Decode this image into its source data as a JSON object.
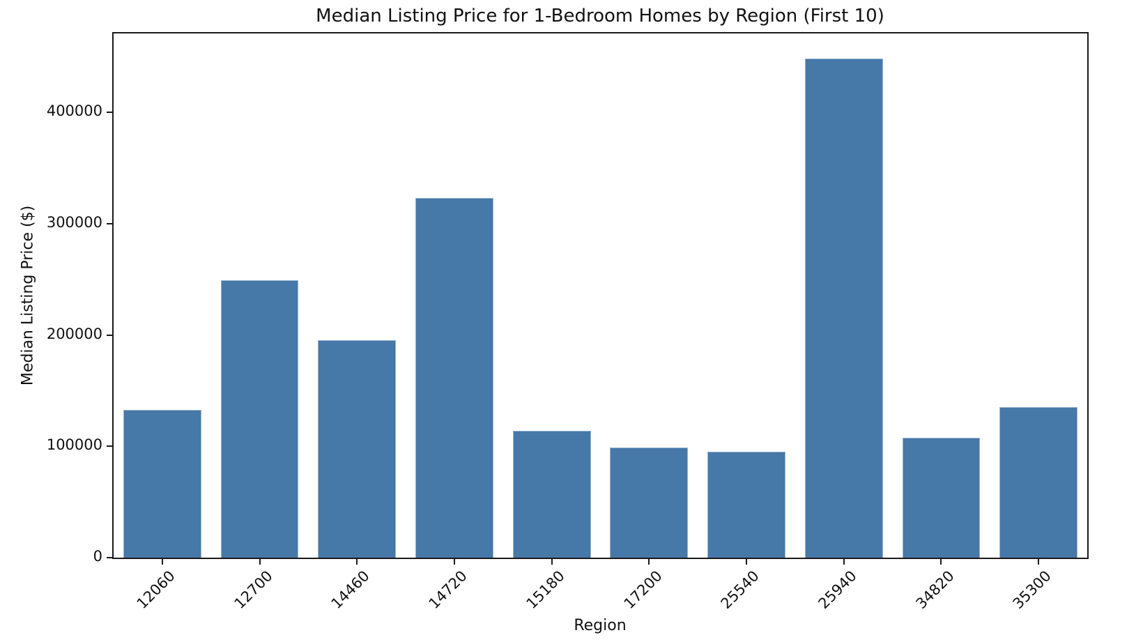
{
  "chart_data": {
    "type": "bar",
    "title": "Median Listing Price for 1-Bedroom Homes by Region (First 10)",
    "xlabel": "Region",
    "ylabel": "Median Listing Price ($)",
    "categories": [
      "12060",
      "12700",
      "14460",
      "14720",
      "15180",
      "17200",
      "25540",
      "25940",
      "34820",
      "35300"
    ],
    "values": [
      132500,
      249500,
      195600,
      323500,
      114000,
      99000,
      95400,
      448400,
      107800,
      135600
    ],
    "yticks": [
      0,
      100000,
      200000,
      300000,
      400000
    ],
    "ylim": [
      0,
      471000
    ],
    "bar_width_fraction": 0.8,
    "grid": false,
    "legend": null,
    "bar_color": "#4678a8",
    "axis_color": "#1a1a1a",
    "text_color": "#111111",
    "background_color": "#ffffff"
  }
}
